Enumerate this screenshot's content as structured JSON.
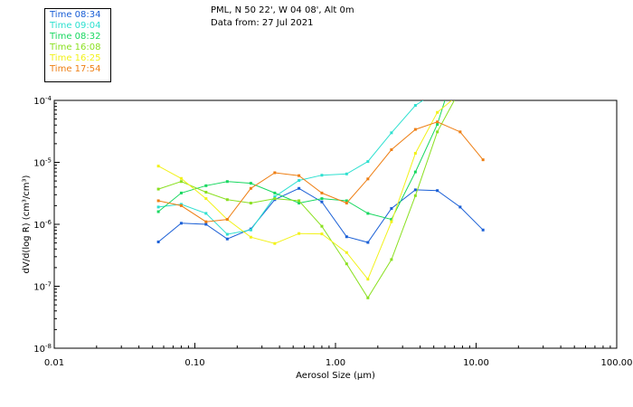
{
  "header": {
    "location": "PML, N 50 22', W 04 08', Alt 0m",
    "date": "Data from: 27 Jul 2021"
  },
  "chart_data": {
    "type": "line",
    "xlabel": "Aerosol Size (µm)",
    "ylabel": "dV/d(log R) (cm³/cm³)",
    "x_scale": "log",
    "y_scale": "log",
    "xlim": [
      0.01,
      100
    ],
    "ylim": [
      1e-08,
      0.0001
    ],
    "grid": false,
    "legend_position": "top-left, outside plot",
    "x_ticks": [
      {
        "value": 0.01,
        "label": "0.01"
      },
      {
        "value": 0.1,
        "label": "0.10"
      },
      {
        "value": 1,
        "label": "1.00"
      },
      {
        "value": 10,
        "label": "10.00"
      },
      {
        "value": 100,
        "label": "100.00"
      }
    ],
    "y_ticks": [
      {
        "value": 1e-08,
        "base": "10",
        "exp": "-8"
      },
      {
        "value": 1e-07,
        "base": "10",
        "exp": "-7"
      },
      {
        "value": 1e-06,
        "base": "10",
        "exp": "-6"
      },
      {
        "value": 1e-05,
        "base": "10",
        "exp": "-5"
      },
      {
        "value": 0.0001,
        "base": "10",
        "exp": "-4"
      }
    ],
    "series": [
      {
        "name": "Time 08:34",
        "color": "#1a5fd6",
        "x": [
          0.055,
          0.08,
          0.12,
          0.17,
          0.25,
          0.37,
          0.55,
          0.8,
          1.2,
          1.7,
          2.5,
          3.7,
          5.3,
          7.7,
          11.2
        ],
        "y": [
          5.2e-07,
          1.04e-06,
          1e-06,
          5.8e-07,
          8.4e-07,
          2.5e-06,
          3.8e-06,
          2.3e-06,
          6.3e-07,
          5.1e-07,
          1.8e-06,
          3.6e-06,
          3.5e-06,
          1.9e-06,
          8.1e-07
        ]
      },
      {
        "name": "Time 09:04",
        "color": "#2ee0d0",
        "x": [
          0.055,
          0.08,
          0.12,
          0.17,
          0.25,
          0.37,
          0.55,
          0.8,
          1.2,
          1.7,
          2.5,
          3.7,
          4.2
        ],
        "y": [
          1.9e-06,
          2.1e-06,
          1.5e-06,
          6.9e-07,
          8.1e-07,
          2.8e-06,
          5.1e-06,
          6.2e-06,
          6.5e-06,
          1.03e-05,
          3e-05,
          8.3e-05,
          0.0001
        ]
      },
      {
        "name": "Time 08:32",
        "color": "#18d860",
        "x": [
          0.055,
          0.08,
          0.12,
          0.17,
          0.25,
          0.37,
          0.55,
          0.8,
          1.2,
          1.7,
          2.5,
          3.7,
          5.3,
          6.0
        ],
        "y": [
          1.6e-06,
          3.2e-06,
          4.2e-06,
          4.9e-06,
          4.6e-06,
          3.2e-06,
          2.2e-06,
          2.6e-06,
          2.4e-06,
          1.5e-06,
          1.2e-06,
          7e-06,
          4.1e-05,
          0.0001
        ]
      },
      {
        "name": "Time 16:08",
        "color": "#8ae020",
        "x": [
          0.055,
          0.08,
          0.12,
          0.17,
          0.25,
          0.37,
          0.55,
          0.8,
          1.2,
          1.7,
          2.5,
          3.7,
          5.3,
          7.0
        ],
        "y": [
          3.7e-06,
          4.9e-06,
          3.3e-06,
          2.5e-06,
          2.2e-06,
          2.6e-06,
          2.4e-06,
          9.3e-07,
          2.3e-07,
          6.5e-08,
          2.7e-07,
          2.9e-06,
          3.1e-05,
          0.0001
        ]
      },
      {
        "name": "Time 16:25",
        "color": "#f2f21a",
        "x": [
          0.055,
          0.08,
          0.12,
          0.17,
          0.25,
          0.37,
          0.55,
          0.8,
          1.2,
          1.7,
          2.5,
          3.7,
          5.3,
          6.7
        ],
        "y": [
          8.7e-06,
          5.5e-06,
          2.6e-06,
          1.2e-06,
          6.2e-07,
          4.9e-07,
          7.1e-07,
          7e-07,
          3.5e-07,
          1.3e-07,
          1.1e-06,
          1.4e-05,
          6.4e-05,
          0.0001
        ]
      },
      {
        "name": "Time 17:54",
        "color": "#ee7f14",
        "x": [
          0.055,
          0.08,
          0.12,
          0.17,
          0.25,
          0.37,
          0.55,
          0.8,
          1.2,
          1.7,
          2.5,
          3.7,
          5.3,
          7.7,
          11.2
        ],
        "y": [
          2.4e-06,
          2e-06,
          1.1e-06,
          1.2e-06,
          3.8e-06,
          6.8e-06,
          6.1e-06,
          3.2e-06,
          2.2e-06,
          5.4e-06,
          1.6e-05,
          3.4e-05,
          4.5e-05,
          3.1e-05,
          1.1e-05
        ]
      }
    ]
  }
}
